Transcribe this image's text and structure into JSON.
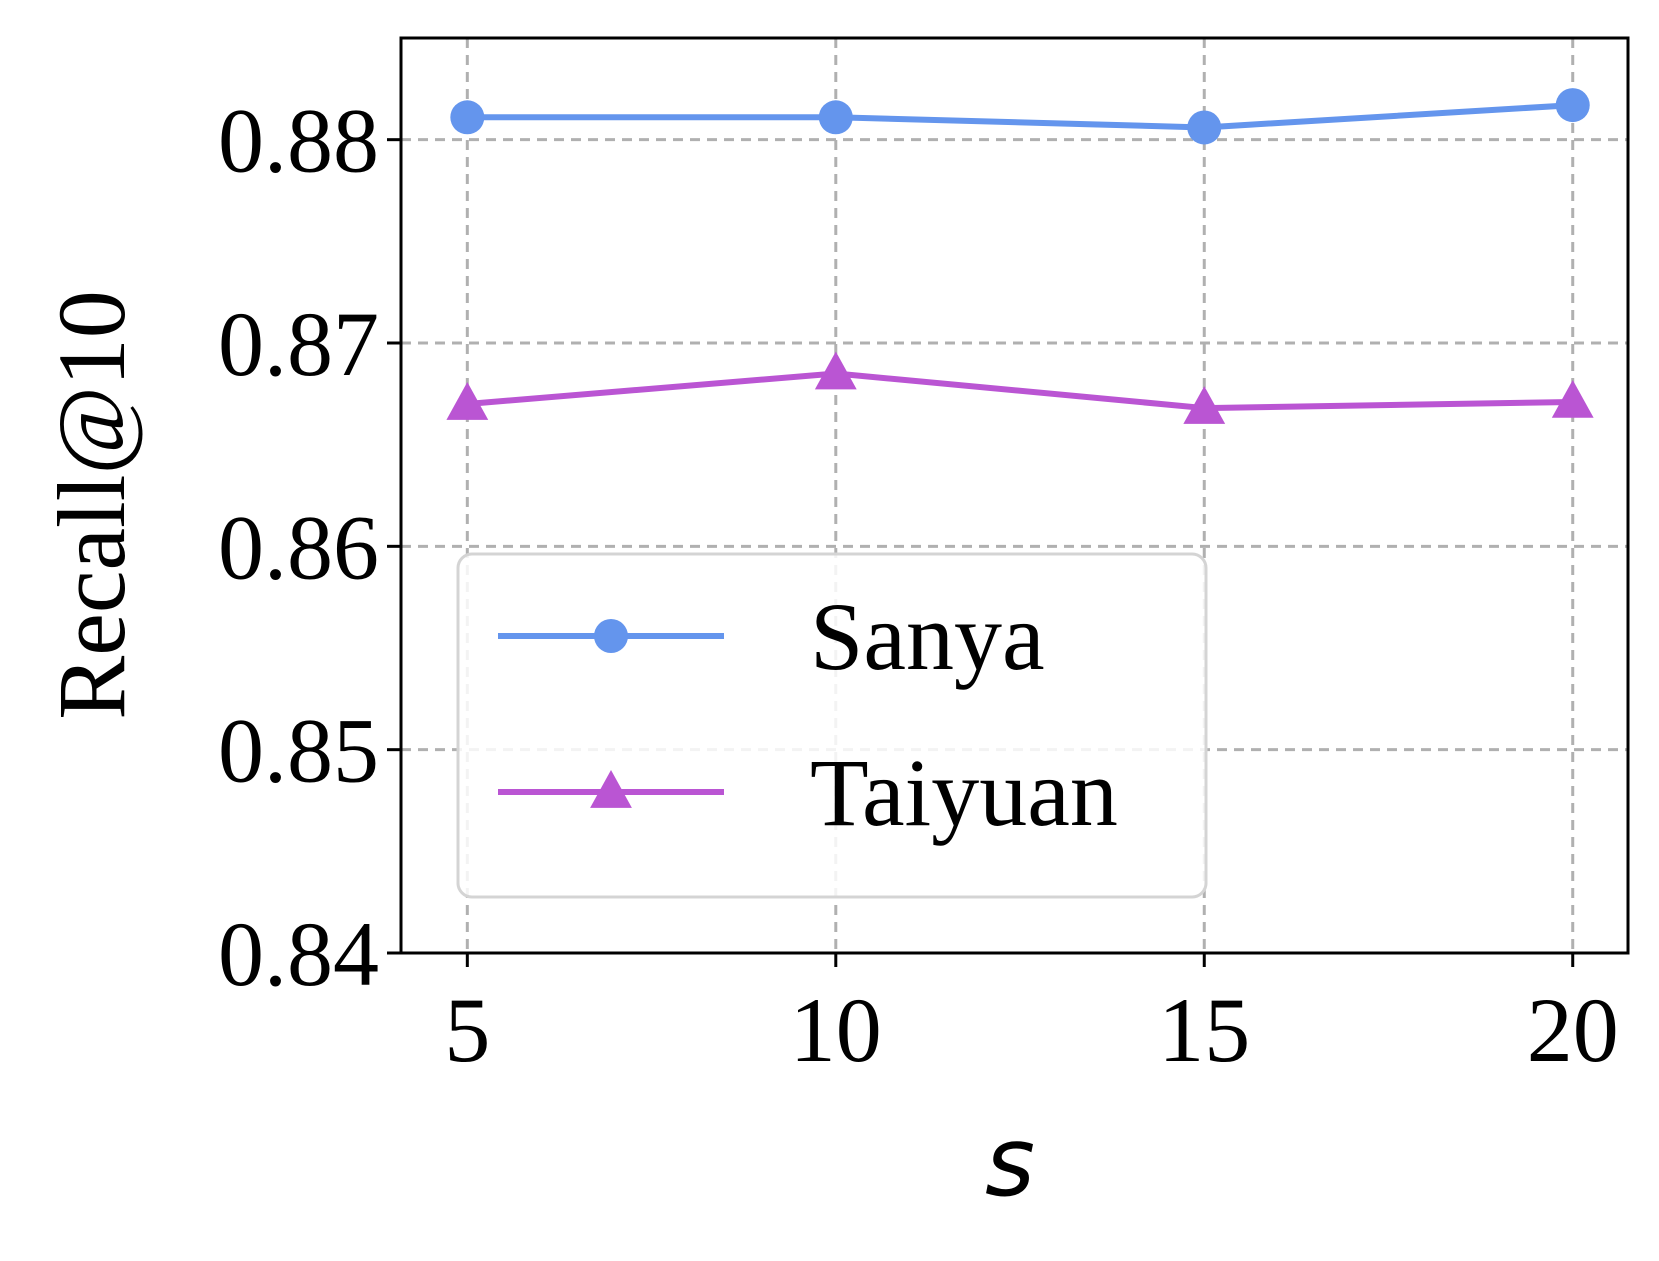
{
  "chart_data": {
    "type": "line",
    "x": [
      5,
      10,
      15,
      20
    ],
    "xticks": [
      "5",
      "10",
      "15",
      "20"
    ],
    "xlim": [
      4.1,
      20.75
    ],
    "ylim": [
      0.84,
      0.885
    ],
    "yticks": [
      "0.84",
      "0.85",
      "0.86",
      "0.87",
      "0.88"
    ],
    "ytick_values": [
      0.84,
      0.85,
      0.86,
      0.87,
      0.88
    ],
    "xlabel": "s",
    "ylabel": "Recall@10",
    "grid": true,
    "legend_position": "lower-left",
    "series": [
      {
        "name": "Sanya",
        "values": [
          0.8811,
          0.8811,
          0.8806,
          0.8817
        ],
        "color": "#6495ed",
        "marker": "circle"
      },
      {
        "name": "Taiyuan",
        "values": [
          0.867,
          0.8685,
          0.8668,
          0.8671
        ],
        "color": "#ba55d3",
        "marker": "triangle"
      }
    ]
  }
}
